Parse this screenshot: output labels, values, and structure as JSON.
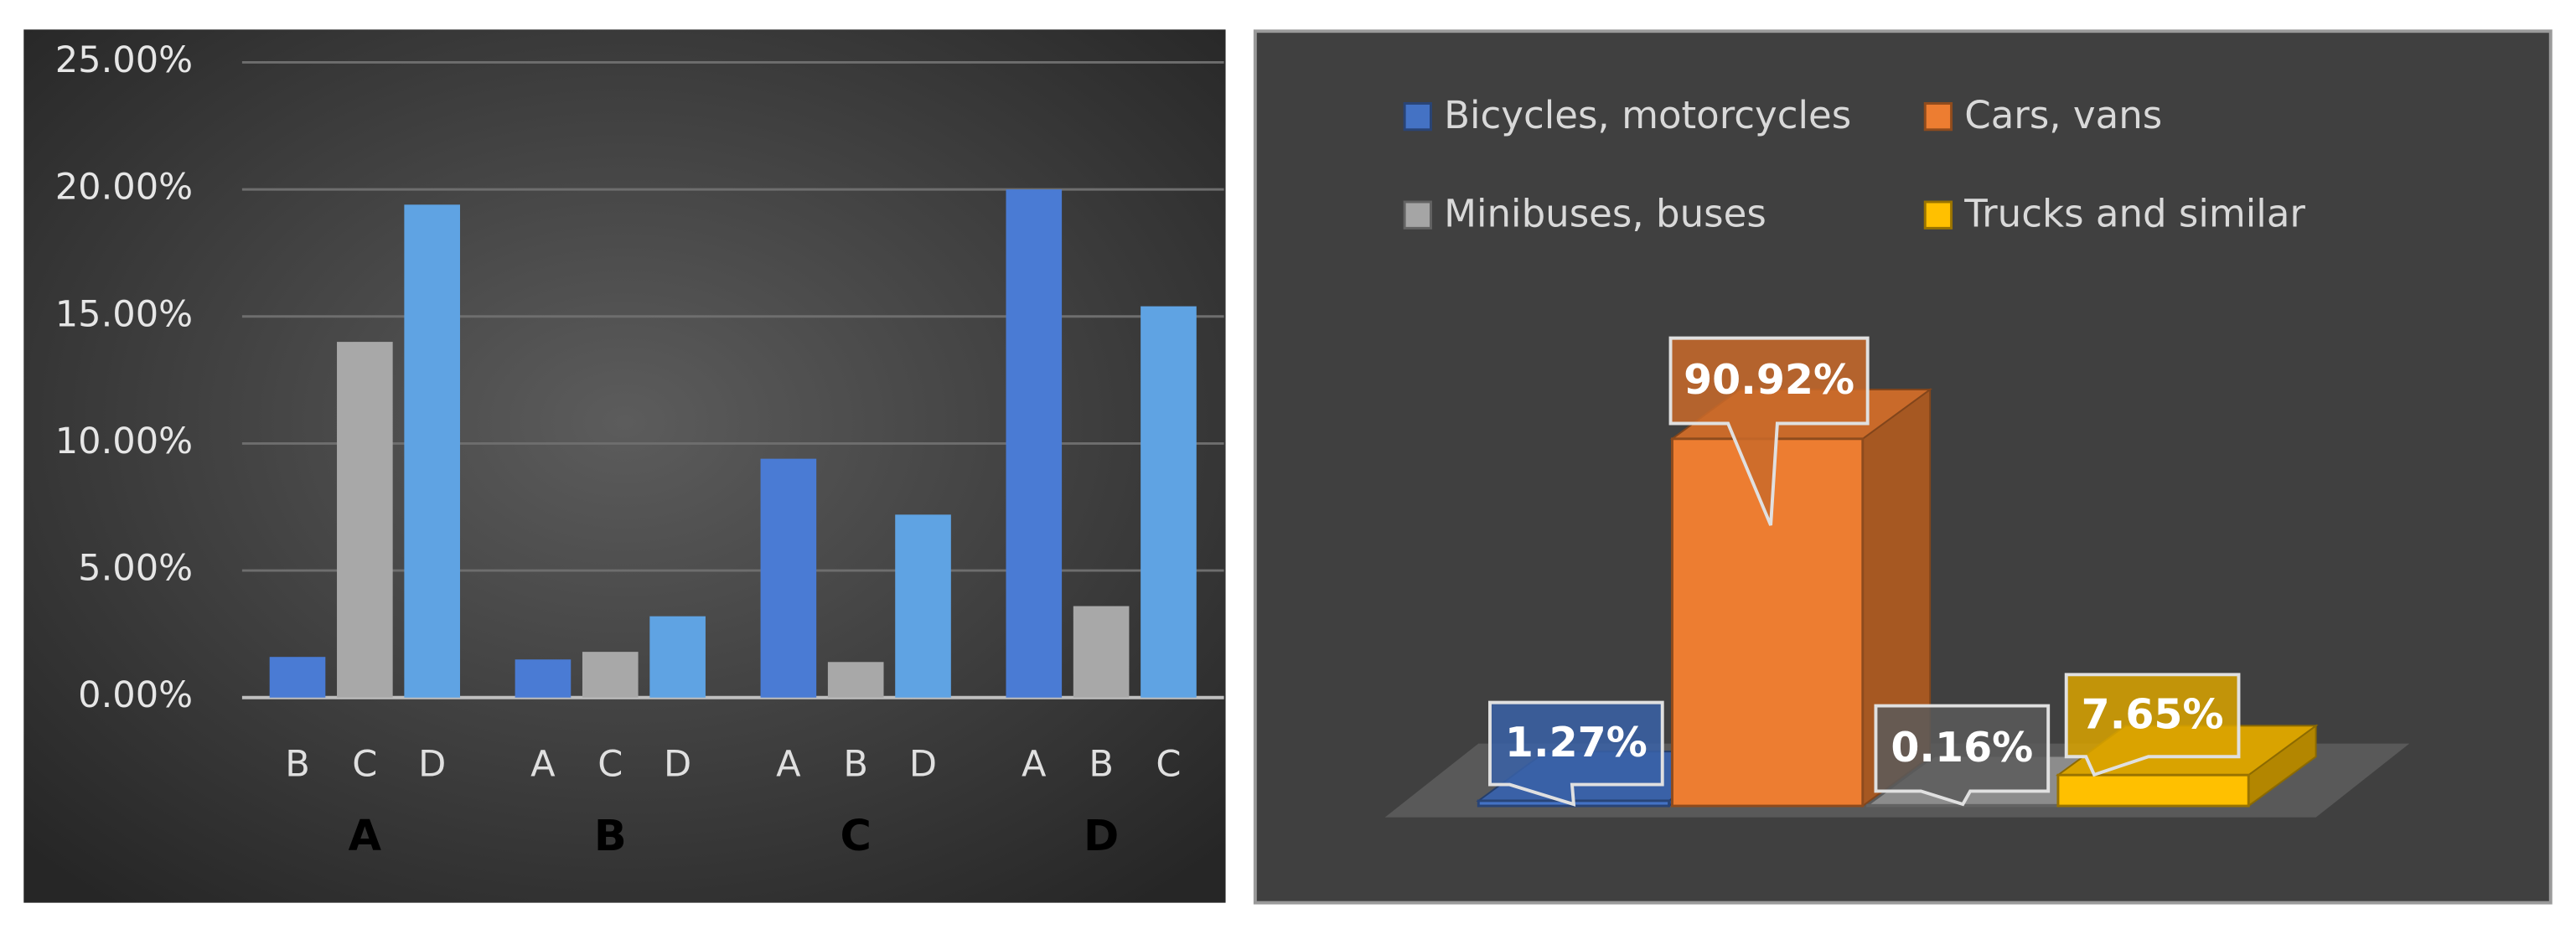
{
  "chart_data": [
    {
      "type": "grouped_bar",
      "groups": [
        "A",
        "B",
        "C",
        "D"
      ],
      "categories": [
        [
          "B",
          "C",
          "D"
        ],
        [
          "A",
          "C",
          "D"
        ],
        [
          "A",
          "B",
          "D"
        ],
        [
          "A",
          "B",
          "C"
        ]
      ],
      "values": [
        [
          1.6,
          14.0,
          19.4
        ],
        [
          1.5,
          1.8,
          3.2
        ],
        [
          9.4,
          1.4,
          7.2
        ],
        [
          20.0,
          3.6,
          15.4
        ]
      ],
      "colors": [
        "#4a7bd4",
        "#a8a8a8",
        "#5fa3e3"
      ],
      "ylim": [
        0,
        25
      ],
      "yticks": [
        {
          "value": 0,
          "label": "0.00%"
        },
        {
          "value": 5,
          "label": "5.00%"
        },
        {
          "value": 10,
          "label": "10.00%"
        },
        {
          "value": 15,
          "label": "15.00%"
        },
        {
          "value": 20,
          "label": "20.00%"
        },
        {
          "value": 25,
          "label": "25.00%"
        }
      ],
      "grid": true
    },
    {
      "type": "bar3d",
      "categories": [
        "Bicycles, motorcycles",
        "Cars, vans",
        "Minibuses, buses",
        "Trucks and similar"
      ],
      "values": [
        1.27,
        90.92,
        0.16,
        7.65
      ],
      "value_labels": [
        "1.27%",
        "90.92%",
        "0.16%",
        "7.65%"
      ],
      "colors": [
        "#4472c4",
        "#ed7d31",
        "#a5a5a5",
        "#ffc000"
      ],
      "legend": "top"
    }
  ]
}
